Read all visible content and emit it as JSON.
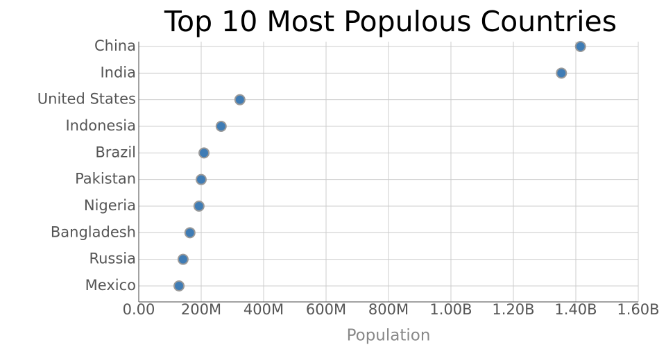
{
  "chart_data": {
    "type": "dot",
    "title": "Top 10 Most Populous Countries",
    "x_label": "Population",
    "categories": [
      "China",
      "India",
      "United States",
      "Indonesia",
      "Brazil",
      "Pakistan",
      "Nigeria",
      "Bangladesh",
      "Russia",
      "Mexico"
    ],
    "values": [
      1415000000,
      1354000000,
      324000000,
      264000000,
      209000000,
      200000000,
      193000000,
      164000000,
      142000000,
      129000000
    ],
    "color": "#3f7cb5",
    "edge_color": "#999999",
    "xlim": [
      0,
      1600000000
    ],
    "xticks": [
      {
        "value": 0,
        "label": "0.00"
      },
      {
        "value": 200000000,
        "label": "200M"
      },
      {
        "value": 400000000,
        "label": "400M"
      },
      {
        "value": 600000000,
        "label": "600M"
      },
      {
        "value": 800000000,
        "label": "800M"
      },
      {
        "value": 1000000000,
        "label": "1.00B"
      },
      {
        "value": 1200000000,
        "label": "1.20B"
      },
      {
        "value": 1400000000,
        "label": "1.40B"
      },
      {
        "value": 1600000000,
        "label": "1.60B"
      }
    ],
    "grid": true
  }
}
